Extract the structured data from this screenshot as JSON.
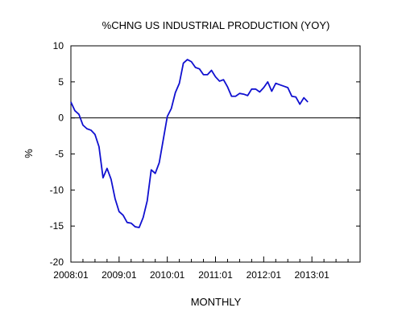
{
  "chart_data": {
    "type": "line",
    "title": "%CHNG US INDUSTRIAL PRODUCTION (YOY)",
    "xlabel": "MONTHLY",
    "ylabel": "%",
    "ylim": [
      -20,
      10
    ],
    "xlim": [
      "2008-01",
      "2014-01"
    ],
    "yticks": [
      10,
      5,
      0,
      -5,
      -10,
      -15,
      -20
    ],
    "xticks": [
      {
        "date": "2008-01",
        "label": "2008:01"
      },
      {
        "date": "2009-01",
        "label": "2009:01"
      },
      {
        "date": "2010-01",
        "label": "2010:01"
      },
      {
        "date": "2011-01",
        "label": "2011:01"
      },
      {
        "date": "2012-01",
        "label": "2012:01"
      },
      {
        "date": "2013-01",
        "label": "2013:01"
      }
    ],
    "grid": false,
    "zero_line": true,
    "line_color": "#1010d0",
    "series": [
      {
        "x": [
          "2008-01",
          "2008-02",
          "2008-03",
          "2008-04",
          "2008-05",
          "2008-06",
          "2008-07",
          "2008-08",
          "2008-09",
          "2008-10",
          "2008-11",
          "2008-12",
          "2009-01",
          "2009-02",
          "2009-03",
          "2009-04",
          "2009-05",
          "2009-06",
          "2009-07",
          "2009-08",
          "2009-09",
          "2009-10",
          "2009-11",
          "2009-12",
          "2010-01",
          "2010-02",
          "2010-03",
          "2010-04",
          "2010-05",
          "2010-06",
          "2010-07",
          "2010-08",
          "2010-09",
          "2010-10",
          "2010-11",
          "2010-12",
          "2011-01",
          "2011-02",
          "2011-03",
          "2011-04",
          "2011-05",
          "2011-06",
          "2011-07",
          "2011-08",
          "2011-09",
          "2011-10",
          "2011-11",
          "2011-12",
          "2012-01",
          "2012-02",
          "2012-03",
          "2012-04",
          "2012-05",
          "2012-06",
          "2012-07",
          "2012-08",
          "2012-09",
          "2012-10",
          "2012-11",
          "2012-12"
        ],
        "values": [
          2.2,
          1.0,
          0.5,
          -1.0,
          -1.5,
          -1.7,
          -2.3,
          -4.0,
          -8.3,
          -7.0,
          -8.5,
          -11.2,
          -13.0,
          -13.5,
          -14.5,
          -14.6,
          -15.1,
          -15.2,
          -13.8,
          -11.5,
          -7.2,
          -7.7,
          -6.2,
          -3.0,
          0.2,
          1.3,
          3.5,
          4.8,
          7.6,
          8.1,
          7.8,
          7.0,
          6.8,
          6.0,
          6.0,
          6.6,
          5.7,
          5.1,
          5.3,
          4.3,
          3.0,
          3.0,
          3.4,
          3.3,
          3.1,
          4.0,
          4.0,
          3.6,
          4.2,
          5.0,
          3.7,
          4.8,
          4.6,
          4.4,
          4.2,
          3.0,
          2.9,
          1.9,
          2.8,
          2.2
        ]
      }
    ]
  }
}
